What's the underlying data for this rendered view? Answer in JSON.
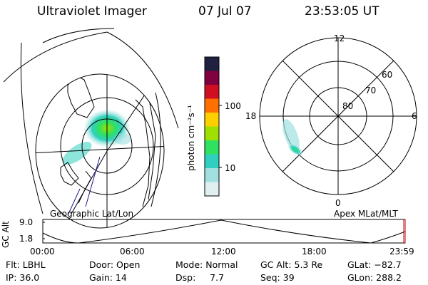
{
  "header": {
    "title": "Ultraviolet Imager",
    "date": "07 Jul 07",
    "time": "23:53:05 UT"
  },
  "colorbar": {
    "unit_label": "photon cm⁻²s⁻¹",
    "ticks": [
      "100",
      "10"
    ],
    "colors": [
      "#202040",
      "#800040",
      "#d01020",
      "#ff7000",
      "#ffd000",
      "#a0e000",
      "#30e060",
      "#30d0c0",
      "#a0e0e0",
      "#e0f0f0"
    ]
  },
  "geo_panel": {
    "label": "Geographic Lat/Lon"
  },
  "polar_panel": {
    "label": "Apex MLat/MLT",
    "mlt_labels": {
      "top": "12",
      "left": "18",
      "right": "6",
      "bottom": "0"
    },
    "lat_labels": [
      "60",
      "70",
      "80"
    ]
  },
  "altitude_plot": {
    "ylabel": "GC Alt",
    "ymax": "9.0",
    "ymin": "1.8",
    "x_ticks": [
      "00:00",
      "06:00",
      "12:00",
      "18:00",
      "23:59"
    ]
  },
  "info": {
    "filter": "Flt: LBHL",
    "door": "Door: Open",
    "mode": "Mode: Normal",
    "gc_alt": "GC Alt: 5.3 Re",
    "glat": "GLat: −82.7",
    "ip": "IP: 36.0",
    "gain": "Gain: 14",
    "dsp": "Dsp:     7.7",
    "seq": "Seq: 39",
    "glon": "GLon: 288.2"
  }
}
